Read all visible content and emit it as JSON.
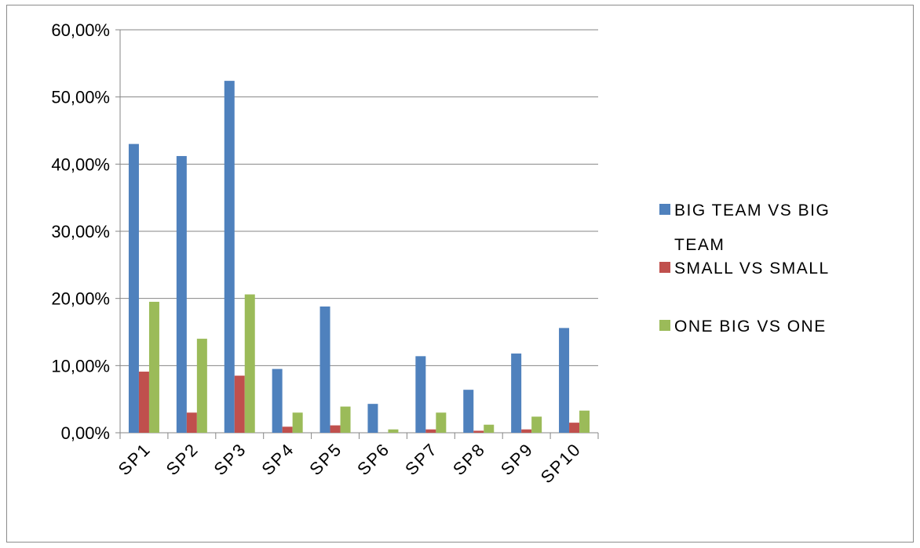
{
  "chart_data": {
    "type": "bar",
    "categories": [
      "SP1",
      "SP2",
      "SP3",
      "SP4",
      "SP5",
      "SP6",
      "SP7",
      "SP8",
      "SP9",
      "SP10"
    ],
    "series": [
      {
        "name": "BIG TEAM VS BIG TEAM",
        "color": "#4f81bd",
        "values": [
          0.43,
          0.412,
          0.524,
          0.095,
          0.188,
          0.043,
          0.114,
          0.064,
          0.118,
          0.156
        ]
      },
      {
        "name": "SMALL VS SMALL",
        "color": "#c0504d",
        "values": [
          0.091,
          0.03,
          0.085,
          0.009,
          0.011,
          0.0,
          0.005,
          0.003,
          0.005,
          0.015
        ]
      },
      {
        "name": "ONE BIG VS ONE",
        "color": "#9bbb59",
        "values": [
          0.195,
          0.14,
          0.206,
          0.03,
          0.039,
          0.005,
          0.03,
          0.012,
          0.024,
          0.033
        ]
      }
    ],
    "y_ticks": [
      "0,00%",
      "10,00%",
      "20,00%",
      "30,00%",
      "40,00%",
      "50,00%",
      "60,00%"
    ],
    "ylim": [
      0,
      0.6
    ],
    "grid": true,
    "legend_position": "right",
    "legend_lines": [
      [
        "BIG TEAM VS BIG",
        "TEAM"
      ],
      [
        "SMALL VS SMALL"
      ],
      [
        "ONE BIG VS ONE"
      ]
    ],
    "title": "",
    "xlabel": "",
    "ylabel": ""
  }
}
